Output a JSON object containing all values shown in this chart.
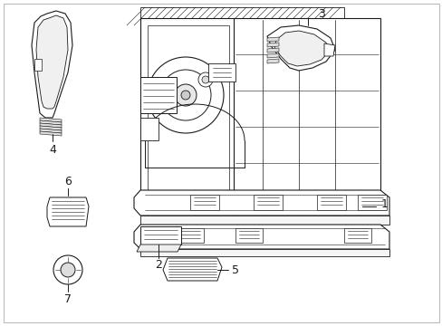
{
  "background_color": "#ffffff",
  "line_color": "#1a1a1a",
  "fig_width": 4.89,
  "fig_height": 3.6,
  "dpi": 100,
  "label_fontsize": 9,
  "border": true
}
